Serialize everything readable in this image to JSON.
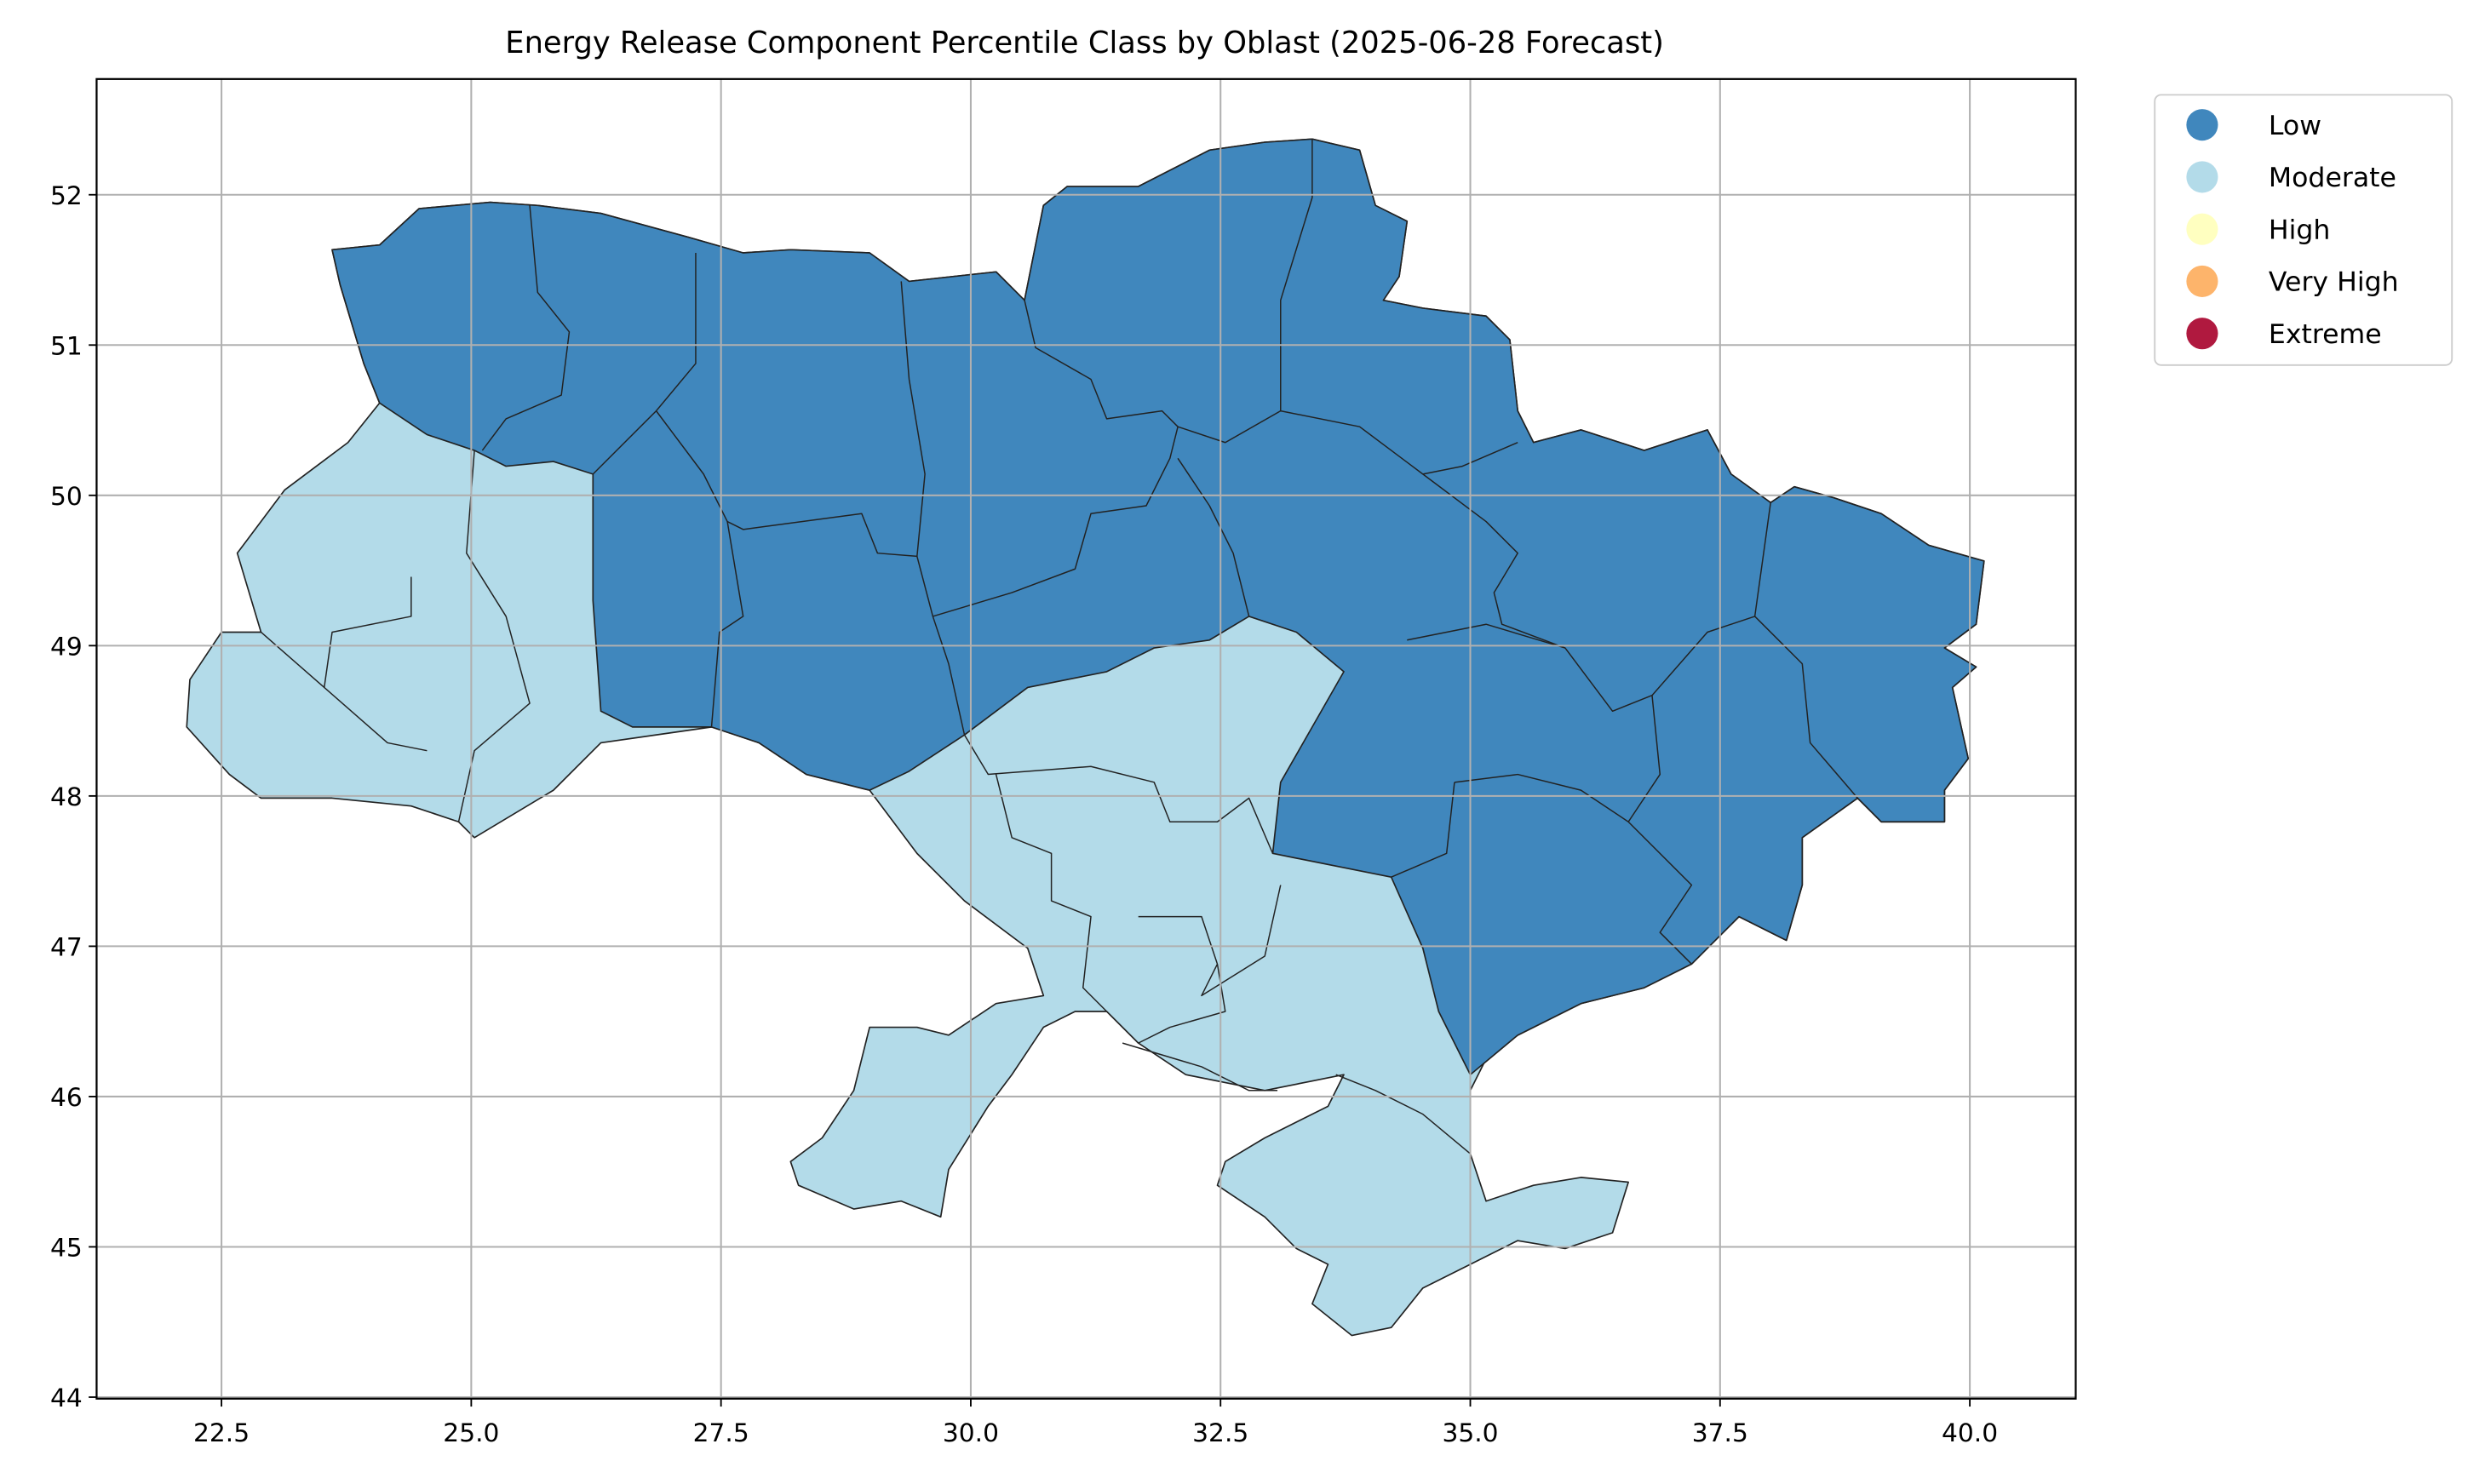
{
  "map": {
    "title": "Energy Release Component Percentile Class by Oblast (2025-06-28 Forecast)",
    "xlim": [
      21.25,
      41.06
    ],
    "ylim": [
      43.99,
      52.77
    ],
    "xticks": [
      22.5,
      {
        "value": 25,
        "label": "25.0"
      },
      27.5,
      {
        "value": 30,
        "label": "30.0"
      },
      32.5,
      {
        "value": 35,
        "label": "35.0"
      },
      37.5,
      {
        "value": 40,
        "label": "40.0"
      }
    ],
    "yticks": [
      44,
      45,
      46,
      47,
      48,
      49,
      50,
      51,
      52
    ],
    "grid": true,
    "legend_position": "outside upper right",
    "legend": [
      {
        "label": "Low",
        "color": "#4087bd"
      },
      {
        "label": "Moderate",
        "color": "#b3dbe9"
      },
      {
        "label": "High",
        "color": "#ffffc0"
      },
      {
        "label": "Very High",
        "color": "#fdb46b"
      },
      {
        "label": "Extreme",
        "color": "#b0193f"
      }
    ]
  }
}
